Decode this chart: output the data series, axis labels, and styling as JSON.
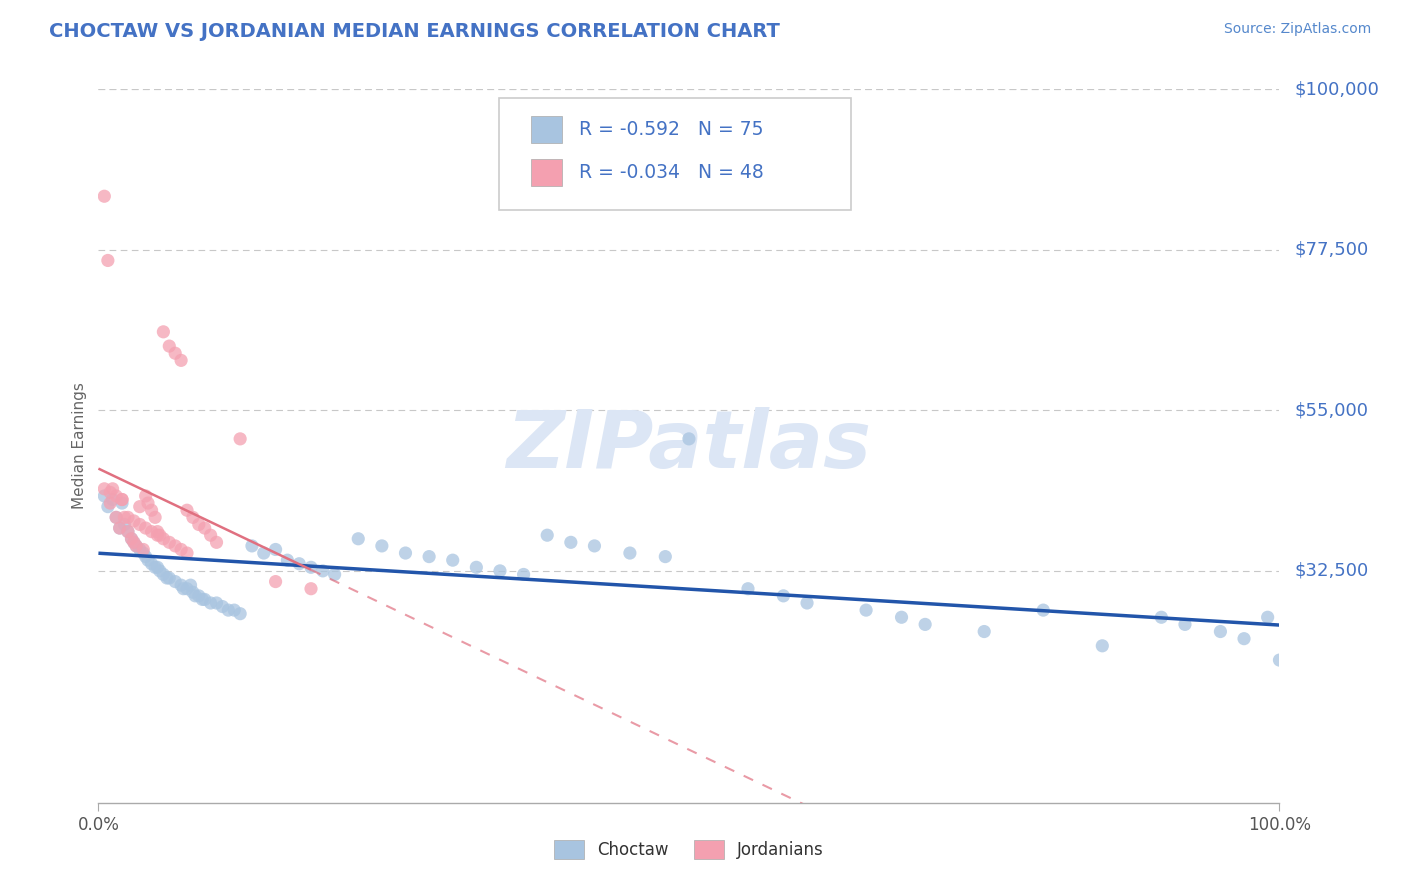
{
  "title": "CHOCTAW VS JORDANIAN MEDIAN EARNINGS CORRELATION CHART",
  "source_text": "Source: ZipAtlas.com",
  "ylabel": "Median Earnings",
  "title_color": "#4472c4",
  "right_label_color": "#4472c4",
  "background_color": "#ffffff",
  "grid_color": "#c8c8c8",
  "watermark": "ZIPatlas",
  "watermark_color": "#dce6f5",
  "choctaw_color": "#a8c4e0",
  "jordanian_color": "#f4a0b0",
  "choctaw_line_color": "#2255aa",
  "jordanian_line_color": "#e07080",
  "ylim": [
    0,
    100000
  ],
  "xlim": [
    0,
    1.0
  ],
  "yticks": [
    32500,
    55000,
    77500,
    100000
  ],
  "ytick_labels": [
    "$32,500",
    "$55,000",
    "$77,500",
    "$100,000"
  ],
  "legend_R1": "-0.592",
  "legend_N1": "75",
  "legend_R2": "-0.034",
  "legend_N2": "48",
  "legend_label1": "Choctaw",
  "legend_label2": "Jordanians",
  "choctaw_x": [
    0.005,
    0.008,
    0.012,
    0.015,
    0.018,
    0.02,
    0.022,
    0.025,
    0.028,
    0.03,
    0.032,
    0.035,
    0.038,
    0.04,
    0.042,
    0.045,
    0.048,
    0.05,
    0.052,
    0.055,
    0.058,
    0.06,
    0.065,
    0.07,
    0.072,
    0.075,
    0.078,
    0.08,
    0.082,
    0.085,
    0.088,
    0.09,
    0.095,
    0.1,
    0.105,
    0.11,
    0.115,
    0.12,
    0.13,
    0.14,
    0.15,
    0.16,
    0.17,
    0.18,
    0.19,
    0.2,
    0.22,
    0.24,
    0.26,
    0.28,
    0.3,
    0.32,
    0.34,
    0.36,
    0.38,
    0.4,
    0.42,
    0.45,
    0.48,
    0.5,
    0.55,
    0.58,
    0.6,
    0.65,
    0.68,
    0.7,
    0.75,
    0.8,
    0.85,
    0.9,
    0.92,
    0.95,
    0.97,
    0.99,
    1.0
  ],
  "choctaw_y": [
    43000,
    41500,
    42500,
    40000,
    38500,
    42000,
    39000,
    38000,
    37000,
    36500,
    36000,
    35500,
    35000,
    34500,
    34000,
    33500,
    33000,
    33000,
    32500,
    32000,
    31500,
    31500,
    31000,
    30500,
    30000,
    30000,
    30500,
    29500,
    29000,
    29000,
    28500,
    28500,
    28000,
    28000,
    27500,
    27000,
    27000,
    26500,
    36000,
    35000,
    35500,
    34000,
    33500,
    33000,
    32500,
    32000,
    37000,
    36000,
    35000,
    34500,
    34000,
    33000,
    32500,
    32000,
    37500,
    36500,
    36000,
    35000,
    34500,
    51000,
    30000,
    29000,
    28000,
    27000,
    26000,
    25000,
    24000,
    27000,
    22000,
    26000,
    25000,
    24000,
    23000,
    26000,
    20000
  ],
  "jordanian_x": [
    0.005,
    0.008,
    0.01,
    0.012,
    0.015,
    0.018,
    0.02,
    0.022,
    0.025,
    0.028,
    0.03,
    0.032,
    0.035,
    0.038,
    0.04,
    0.042,
    0.045,
    0.048,
    0.05,
    0.052,
    0.055,
    0.06,
    0.065,
    0.07,
    0.075,
    0.08,
    0.085,
    0.09,
    0.095,
    0.1,
    0.005,
    0.01,
    0.015,
    0.02,
    0.025,
    0.03,
    0.035,
    0.04,
    0.045,
    0.05,
    0.055,
    0.06,
    0.065,
    0.07,
    0.075,
    0.12,
    0.15,
    0.18
  ],
  "jordanian_y": [
    85000,
    76000,
    42000,
    44000,
    40000,
    38500,
    42500,
    40000,
    38000,
    37000,
    36500,
    36000,
    41500,
    35500,
    43000,
    42000,
    41000,
    40000,
    38000,
    37500,
    66000,
    64000,
    63000,
    62000,
    41000,
    40000,
    39000,
    38500,
    37500,
    36500,
    44000,
    43500,
    43000,
    42500,
    40000,
    39500,
    39000,
    38500,
    38000,
    37500,
    37000,
    36500,
    36000,
    35500,
    35000,
    51000,
    31000,
    30000
  ]
}
